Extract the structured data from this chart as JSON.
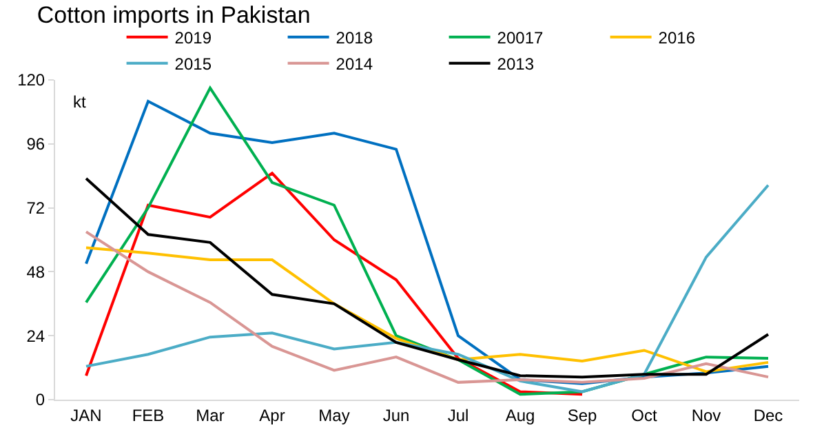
{
  "chart_data": {
    "type": "line",
    "title": "Cotton imports in Pakistan",
    "categories": [
      "JAN",
      "FEB",
      "Mar",
      "Apr",
      "May",
      "Jun",
      "Jul",
      "Aug",
      "Sep",
      "Oct",
      "Nov",
      "Dec"
    ],
    "series": [
      {
        "name": "2019",
        "color": "#ff0000",
        "values": [
          9,
          73,
          68.5,
          85,
          60,
          45,
          15.5,
          3,
          2,
          null,
          null,
          null
        ]
      },
      {
        "name": "2018",
        "color": "#0070c0",
        "values": [
          51,
          112,
          100,
          96.5,
          100,
          94,
          24,
          7.5,
          6,
          8.5,
          10,
          12.5
        ]
      },
      {
        "name": "20017",
        "color": "#00b050",
        "values": [
          36.5,
          72,
          117,
          81.5,
          73,
          24,
          15,
          2,
          3,
          9.5,
          16,
          15.5
        ]
      },
      {
        "name": "2016",
        "color": "#ffc000",
        "values": [
          57,
          55,
          52.5,
          52.5,
          36,
          23,
          15,
          17,
          14.5,
          18.5,
          10.5,
          14
        ]
      },
      {
        "name": "2015",
        "color": "#4bacc6",
        "values": [
          12.5,
          17,
          23.5,
          25,
          19,
          21.5,
          17,
          7,
          3,
          9.5,
          53.5,
          80.5
        ]
      },
      {
        "name": "2014",
        "color": "#d99694",
        "values": [
          63,
          48,
          36.5,
          20,
          11,
          16,
          6.5,
          7.5,
          6.5,
          8,
          13.5,
          8.5
        ]
      },
      {
        "name": "2013",
        "color": "#000000",
        "values": [
          83,
          62,
          59,
          39.5,
          36,
          21.5,
          15,
          9,
          8.5,
          9.5,
          9.5,
          24.5
        ]
      }
    ],
    "ylim": [
      0,
      120
    ],
    "yticks": [
      0,
      24,
      48,
      72,
      96,
      120
    ],
    "annotations": [
      "kt"
    ],
    "grid": false,
    "legend": "top",
    "marker": "none",
    "line_style": "solid"
  }
}
